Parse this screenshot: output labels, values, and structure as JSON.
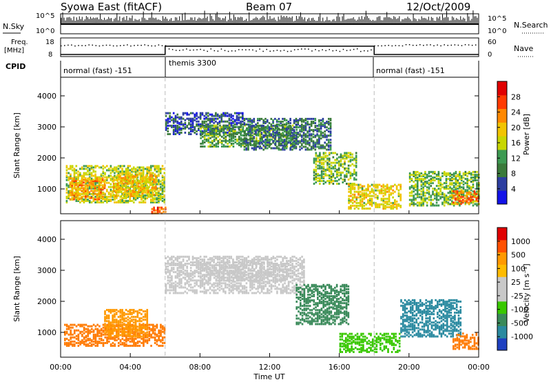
{
  "header": {
    "left": "Syowa East (fitACF)",
    "center": "Beam 07",
    "right": "12/Oct/2009"
  },
  "aux_panels": {
    "nsky": {
      "label": "N.Sky",
      "ticks_left": [
        "10^5",
        "10^0"
      ],
      "ticks_right": [
        "10^5",
        "10^0"
      ],
      "right_label": "N.Search"
    },
    "freq": {
      "label_line1": "Freq.",
      "label_line2": "[MHz]",
      "ticks_left": [
        "18",
        "8"
      ],
      "ticks_right": [
        "60",
        "0"
      ],
      "right_label": "Nave"
    },
    "cpid": {
      "label": "CPID",
      "segments": [
        {
          "name": "normal (fast) -151",
          "start": 0,
          "end": 6
        },
        {
          "name": "themis 3300",
          "start": 6,
          "end": 18
        },
        {
          "name": "normal (fast) -151",
          "start": 18,
          "end": 24
        }
      ]
    }
  },
  "colors": {
    "pwr_scale": [
      "#1212e8",
      "#2c3ea0",
      "#3a7a3a",
      "#3d9a52",
      "#c8d600",
      "#f2c400",
      "#ff8800",
      "#ff3a00",
      "#e00000"
    ],
    "vel_scale": [
      "#e00000",
      "#ff5000",
      "#ff9900",
      "#ffbb00",
      "#c8c8c8",
      "#c8c8c8",
      "#39c800",
      "#3a8a5a",
      "#2a8aa0",
      "#1e40c0"
    ]
  },
  "chart_data": [
    {
      "type": "heatmap",
      "name": "power",
      "ylabel": "Slant Range [km]",
      "yticks": [
        "1000",
        "2000",
        "3000",
        "4000"
      ],
      "ylim": [
        200,
        4600
      ],
      "xlim": [
        0,
        24
      ],
      "colorbar": {
        "label": "Power [dB]",
        "ticks": [
          "4",
          "8",
          "12",
          "16",
          "20",
          "24",
          "28"
        ],
        "range": [
          0,
          32
        ]
      },
      "regions": [
        {
          "t0": 0.3,
          "t1": 6.0,
          "r0": 600,
          "r1": 1800,
          "value": 16
        },
        {
          "t0": 0.5,
          "t1": 2.5,
          "r0": 700,
          "r1": 1400,
          "value": 22
        },
        {
          "t0": 3.0,
          "t1": 5.5,
          "r0": 800,
          "r1": 1500,
          "value": 20
        },
        {
          "t0": 5.2,
          "t1": 6.0,
          "r0": 250,
          "r1": 450,
          "value": 26
        },
        {
          "t0": 6.0,
          "t1": 10.5,
          "r0": 2800,
          "r1": 3500,
          "value": 6
        },
        {
          "t0": 8.0,
          "t1": 13.5,
          "r0": 2400,
          "r1": 3100,
          "value": 12
        },
        {
          "t0": 10.5,
          "t1": 15.5,
          "r0": 2300,
          "r1": 3300,
          "value": 8
        },
        {
          "t0": 14.5,
          "t1": 17.0,
          "r0": 1200,
          "r1": 2200,
          "value": 14
        },
        {
          "t0": 16.5,
          "t1": 19.5,
          "r0": 400,
          "r1": 1200,
          "value": 18
        },
        {
          "t0": 20.0,
          "t1": 24.0,
          "r0": 500,
          "r1": 1600,
          "value": 14
        },
        {
          "t0": 22.5,
          "t1": 24.0,
          "r0": 550,
          "r1": 1000,
          "value": 24
        }
      ]
    },
    {
      "type": "heatmap",
      "name": "velocity",
      "ylabel": "Slant Range [km]",
      "yticks": [
        "1000",
        "2000",
        "3000",
        "4000"
      ],
      "ylim": [
        200,
        4600
      ],
      "xlim": [
        0,
        24
      ],
      "colorbar": {
        "label": "Velocity [m s⁻¹]",
        "ticks": [
          "1000",
          "500",
          "100",
          "25",
          "-25",
          "-100",
          "-500",
          "-1000"
        ]
      },
      "regions": [
        {
          "t0": 0.2,
          "t1": 6.0,
          "r0": 600,
          "r1": 1300,
          "value": -200
        },
        {
          "t0": 2.5,
          "t1": 5.0,
          "r0": 900,
          "r1": 1800,
          "value": -300
        },
        {
          "t0": 6.0,
          "t1": 14.0,
          "r0": 2300,
          "r1": 3500,
          "value": 0
        },
        {
          "t0": 8.0,
          "t1": 13.0,
          "r0": 2700,
          "r1": 3300,
          "value": 10
        },
        {
          "t0": 13.5,
          "t1": 16.5,
          "r0": 1300,
          "r1": 2600,
          "value": 150
        },
        {
          "t0": 16.0,
          "t1": 19.5,
          "r0": 400,
          "r1": 1000,
          "value": 90
        },
        {
          "t0": 19.5,
          "t1": 23.0,
          "r0": 900,
          "r1": 2100,
          "value": 200
        },
        {
          "t0": 22.5,
          "t1": 24.0,
          "r0": 500,
          "r1": 1000,
          "value": -150
        }
      ]
    }
  ],
  "xaxis": {
    "ticks": [
      "00:00",
      "04:00",
      "08:00",
      "12:00",
      "16:00",
      "20:00",
      "00:00"
    ],
    "label": "Time UT"
  }
}
